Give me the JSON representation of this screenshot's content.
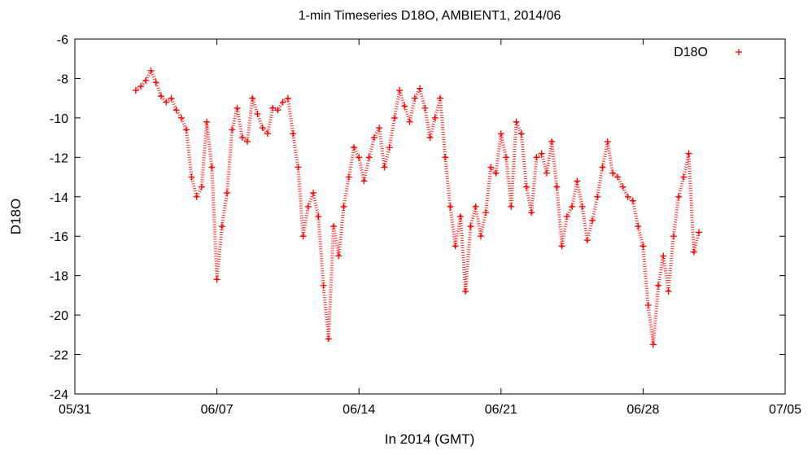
{
  "chart_data": {
    "type": "scatter",
    "title": "1-min Timeseries D18O, AMBIENT1, 2014/06",
    "xlabel": "In 2014 (GMT)",
    "ylabel": "D18O",
    "xlim": [
      "2014-05-31",
      "2014-07-05"
    ],
    "ylim": [
      -24,
      -6
    ],
    "x_ticks": [
      "05/31",
      "06/07",
      "06/14",
      "06/21",
      "06/28",
      "07/05"
    ],
    "y_ticks": [
      -6,
      -8,
      -10,
      -12,
      -14,
      -16,
      -18,
      -20,
      -22,
      -24
    ],
    "grid": false,
    "legend_position": "top-right",
    "series": [
      {
        "name": "D18O",
        "marker": "+",
        "color": "#ff0000",
        "points": [
          [
            "2014-06-03 00:00",
            -8.6
          ],
          [
            "2014-06-03 06:00",
            -8.4
          ],
          [
            "2014-06-03 12:00",
            -8.1
          ],
          [
            "2014-06-03 18:00",
            -7.6
          ],
          [
            "2014-06-04 00:00",
            -8.2
          ],
          [
            "2014-06-04 06:00",
            -8.9
          ],
          [
            "2014-06-04 12:00",
            -9.2
          ],
          [
            "2014-06-04 18:00",
            -9.0
          ],
          [
            "2014-06-05 00:00",
            -9.6
          ],
          [
            "2014-06-05 06:00",
            -10.0
          ],
          [
            "2014-06-05 12:00",
            -10.6
          ],
          [
            "2014-06-05 18:00",
            -13.0
          ],
          [
            "2014-06-06 00:00",
            -14.0
          ],
          [
            "2014-06-06 06:00",
            -13.5
          ],
          [
            "2014-06-06 12:00",
            -10.2
          ],
          [
            "2014-06-06 18:00",
            -12.5
          ],
          [
            "2014-06-07 00:00",
            -18.2
          ],
          [
            "2014-06-07 06:00",
            -15.5
          ],
          [
            "2014-06-07 12:00",
            -13.8
          ],
          [
            "2014-06-07 18:00",
            -10.6
          ],
          [
            "2014-06-08 00:00",
            -9.5
          ],
          [
            "2014-06-08 06:00",
            -11.0
          ],
          [
            "2014-06-08 12:00",
            -11.2
          ],
          [
            "2014-06-08 18:00",
            -9.0
          ],
          [
            "2014-06-09 00:00",
            -9.8
          ],
          [
            "2014-06-09 06:00",
            -10.5
          ],
          [
            "2014-06-09 12:00",
            -10.8
          ],
          [
            "2014-06-09 18:00",
            -9.5
          ],
          [
            "2014-06-10 00:00",
            -9.6
          ],
          [
            "2014-06-10 06:00",
            -9.2
          ],
          [
            "2014-06-10 12:00",
            -9.0
          ],
          [
            "2014-06-10 18:00",
            -10.8
          ],
          [
            "2014-06-11 00:00",
            -12.5
          ],
          [
            "2014-06-11 06:00",
            -16.0
          ],
          [
            "2014-06-11 12:00",
            -14.5
          ],
          [
            "2014-06-11 18:00",
            -13.8
          ],
          [
            "2014-06-12 00:00",
            -15.0
          ],
          [
            "2014-06-12 06:00",
            -18.5
          ],
          [
            "2014-06-12 12:00",
            -21.2
          ],
          [
            "2014-06-12 18:00",
            -15.5
          ],
          [
            "2014-06-13 00:00",
            -17.0
          ],
          [
            "2014-06-13 06:00",
            -14.5
          ],
          [
            "2014-06-13 12:00",
            -13.0
          ],
          [
            "2014-06-13 18:00",
            -11.5
          ],
          [
            "2014-06-14 00:00",
            -12.0
          ],
          [
            "2014-06-14 06:00",
            -13.2
          ],
          [
            "2014-06-14 12:00",
            -12.0
          ],
          [
            "2014-06-14 18:00",
            -11.0
          ],
          [
            "2014-06-15 00:00",
            -10.5
          ],
          [
            "2014-06-15 06:00",
            -12.5
          ],
          [
            "2014-06-15 12:00",
            -11.5
          ],
          [
            "2014-06-15 18:00",
            -10.0
          ],
          [
            "2014-06-16 00:00",
            -8.6
          ],
          [
            "2014-06-16 06:00",
            -9.4
          ],
          [
            "2014-06-16 12:00",
            -10.2
          ],
          [
            "2014-06-16 18:00",
            -9.0
          ],
          [
            "2014-06-17 00:00",
            -8.5
          ],
          [
            "2014-06-17 06:00",
            -9.5
          ],
          [
            "2014-06-17 12:00",
            -11.0
          ],
          [
            "2014-06-17 18:00",
            -10.0
          ],
          [
            "2014-06-18 00:00",
            -9.0
          ],
          [
            "2014-06-18 06:00",
            -12.0
          ],
          [
            "2014-06-18 12:00",
            -14.5
          ],
          [
            "2014-06-18 18:00",
            -16.5
          ],
          [
            "2014-06-19 00:00",
            -15.0
          ],
          [
            "2014-06-19 06:00",
            -18.8
          ],
          [
            "2014-06-19 12:00",
            -15.5
          ],
          [
            "2014-06-19 18:00",
            -14.5
          ],
          [
            "2014-06-20 00:00",
            -16.0
          ],
          [
            "2014-06-20 06:00",
            -14.8
          ],
          [
            "2014-06-20 12:00",
            -12.5
          ],
          [
            "2014-06-20 18:00",
            -12.8
          ],
          [
            "2014-06-21 00:00",
            -10.8
          ],
          [
            "2014-06-21 06:00",
            -12.0
          ],
          [
            "2014-06-21 12:00",
            -14.5
          ],
          [
            "2014-06-21 18:00",
            -10.2
          ],
          [
            "2014-06-22 00:00",
            -10.8
          ],
          [
            "2014-06-22 06:00",
            -13.5
          ],
          [
            "2014-06-22 12:00",
            -14.8
          ],
          [
            "2014-06-22 18:00",
            -12.0
          ],
          [
            "2014-06-23 00:00",
            -11.8
          ],
          [
            "2014-06-23 06:00",
            -12.8
          ],
          [
            "2014-06-23 12:00",
            -11.2
          ],
          [
            "2014-06-23 18:00",
            -13.5
          ],
          [
            "2014-06-24 00:00",
            -16.5
          ],
          [
            "2014-06-24 06:00",
            -15.0
          ],
          [
            "2014-06-24 12:00",
            -14.5
          ],
          [
            "2014-06-24 18:00",
            -13.2
          ],
          [
            "2014-06-25 00:00",
            -14.5
          ],
          [
            "2014-06-25 06:00",
            -16.2
          ],
          [
            "2014-06-25 12:00",
            -15.2
          ],
          [
            "2014-06-25 18:00",
            -14.0
          ],
          [
            "2014-06-26 00:00",
            -12.5
          ],
          [
            "2014-06-26 06:00",
            -11.2
          ],
          [
            "2014-06-26 12:00",
            -12.8
          ],
          [
            "2014-06-26 18:00",
            -13.0
          ],
          [
            "2014-06-27 00:00",
            -13.5
          ],
          [
            "2014-06-27 06:00",
            -14.0
          ],
          [
            "2014-06-27 12:00",
            -14.2
          ],
          [
            "2014-06-27 18:00",
            -15.5
          ],
          [
            "2014-06-28 00:00",
            -16.5
          ],
          [
            "2014-06-28 06:00",
            -19.5
          ],
          [
            "2014-06-28 12:00",
            -21.5
          ],
          [
            "2014-06-28 18:00",
            -18.5
          ],
          [
            "2014-06-29 00:00",
            -17.0
          ],
          [
            "2014-06-29 06:00",
            -18.8
          ],
          [
            "2014-06-29 12:00",
            -16.0
          ],
          [
            "2014-06-29 18:00",
            -14.0
          ],
          [
            "2014-06-30 00:00",
            -13.0
          ],
          [
            "2014-06-30 06:00",
            -11.8
          ],
          [
            "2014-06-30 12:00",
            -16.8
          ],
          [
            "2014-06-30 18:00",
            -15.8
          ]
        ]
      }
    ]
  }
}
